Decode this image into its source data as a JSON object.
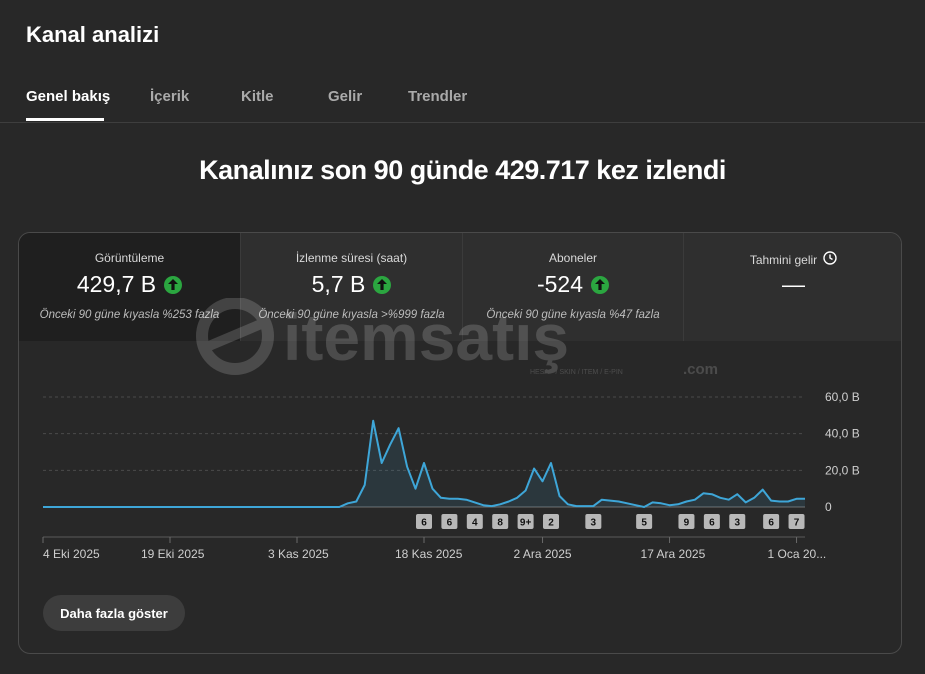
{
  "page_title": "Kanal analizi",
  "tabs": [
    {
      "label": "Genel bakış",
      "active": true
    },
    {
      "label": "İçerik",
      "active": false
    },
    {
      "label": "Kitle",
      "active": false
    },
    {
      "label": "Gelir",
      "active": false
    },
    {
      "label": "Trendler",
      "active": false
    }
  ],
  "headline": "Kanalınız son 90 günde 429.717 kez izlendi",
  "metrics": [
    {
      "label": "Görüntüleme",
      "value": "429,7 B",
      "up": true,
      "sub": "Önceki 90 güne kıyasla %253 fazla"
    },
    {
      "label": "İzlenme süresi (saat)",
      "value": "5,7 B",
      "up": true,
      "sub": "Önceki 90 güne kıyasla >%999 fazla"
    },
    {
      "label": "Aboneler",
      "value": "-524",
      "up": true,
      "sub": "Önceki 90 güne kıyasla %47 fazla"
    },
    {
      "label": "Tahmini gelir",
      "value": "—",
      "up": false,
      "sub": ""
    }
  ],
  "watermark": {
    "brand": "itemsatış",
    "suffix": ".com",
    "tagline": "HESAP / SKIN / ITEM / E-PIN"
  },
  "more_button": "Daha fazla göster",
  "colors": {
    "background": "#282828",
    "line": "#3ea6d8",
    "up": "#2ba640"
  },
  "chart_data": {
    "type": "area",
    "x_tick_labels": [
      "4 Eki 2025",
      "19 Eki 2025",
      "3 Kas 2025",
      "18 Kas 2025",
      "2 Ara 2025",
      "17 Ara 2025",
      "1 Oca 20..."
    ],
    "x_tick_days": [
      0,
      15,
      30,
      45,
      59,
      74,
      89
    ],
    "y_tick_labels": [
      "60,0 B",
      "40,0 B",
      "20,0 B",
      "0"
    ],
    "y_tick_values": [
      60,
      40,
      20,
      0
    ],
    "ylim": [
      0,
      60
    ],
    "series": [
      {
        "values": [
          0,
          0,
          0,
          0,
          0,
          0,
          0,
          0,
          0,
          0,
          0,
          0,
          0,
          0,
          0,
          0,
          0,
          0,
          0,
          0,
          0,
          0,
          0,
          0,
          0,
          0,
          0,
          0,
          0,
          0,
          0,
          0,
          0,
          0,
          0,
          0,
          2,
          3,
          12,
          47,
          24,
          34,
          43,
          22,
          10,
          24,
          10,
          5,
          4.5,
          4.5,
          4,
          2.5,
          1,
          0.5,
          1.5,
          3,
          5,
          9,
          21,
          14,
          24,
          6,
          1.5,
          0.5,
          0.5,
          0.5,
          4,
          3.5,
          3,
          2,
          1,
          0,
          2.5,
          2,
          1,
          1.5,
          3,
          4,
          7.5,
          7,
          5,
          4,
          7,
          2.5,
          5,
          9.5,
          3.5,
          3,
          3,
          4.5,
          4.5
        ]
      }
    ],
    "markers": [
      {
        "day": 45,
        "label": "6"
      },
      {
        "day": 48,
        "label": "6"
      },
      {
        "day": 51,
        "label": "4"
      },
      {
        "day": 54,
        "label": "8"
      },
      {
        "day": 57,
        "label": "9+"
      },
      {
        "day": 60,
        "label": "2"
      },
      {
        "day": 65,
        "label": "3"
      },
      {
        "day": 71,
        "label": "5"
      },
      {
        "day": 76,
        "label": "9"
      },
      {
        "day": 79,
        "label": "6"
      },
      {
        "day": 82,
        "label": "3"
      },
      {
        "day": 86,
        "label": "6"
      },
      {
        "day": 89,
        "label": "7"
      }
    ]
  }
}
